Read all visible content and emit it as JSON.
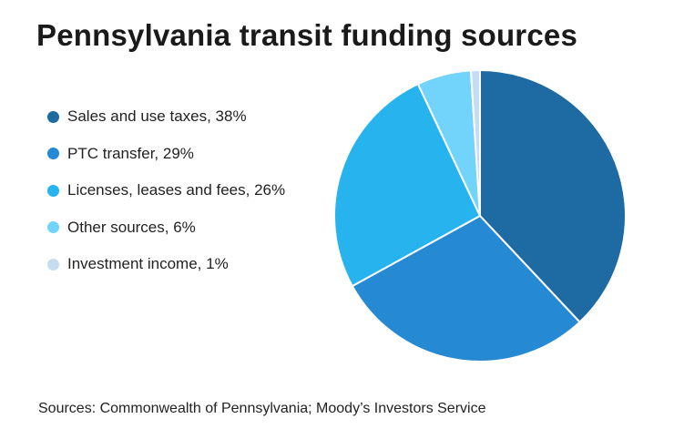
{
  "title": "Pennsylvania transit funding sources",
  "source": "Sources: Commonwealth of Pennsylvania; Moody’s Investors Service",
  "legend": {
    "items": [
      {
        "label": "Sales and use taxes, 38%",
        "color": "#1e6aa3"
      },
      {
        "label": "PTC transfer, 29%",
        "color": "#2589d4"
      },
      {
        "label": "Licenses, leases and fees, 26%",
        "color": "#27b3ee"
      },
      {
        "label": "Other sources, 6%",
        "color": "#72d3fb"
      },
      {
        "label": "Investment income, 1%",
        "color": "#c5ddf0"
      }
    ]
  },
  "chart_data": {
    "type": "pie",
    "title": "Pennsylvania transit funding sources",
    "legend_position": "left",
    "start_angle_deg": 0,
    "direction": "clockwise",
    "slices": [
      {
        "label": "Sales and use taxes",
        "value": 38,
        "color": "#1e6aa3"
      },
      {
        "label": "PTC transfer",
        "value": 29,
        "color": "#2589d4"
      },
      {
        "label": "Licenses, leases and fees",
        "value": 26,
        "color": "#27b3ee"
      },
      {
        "label": "Other sources",
        "value": 6,
        "color": "#72d3fb"
      },
      {
        "label": "Investment income",
        "value": 1,
        "color": "#c5ddf0"
      }
    ]
  }
}
